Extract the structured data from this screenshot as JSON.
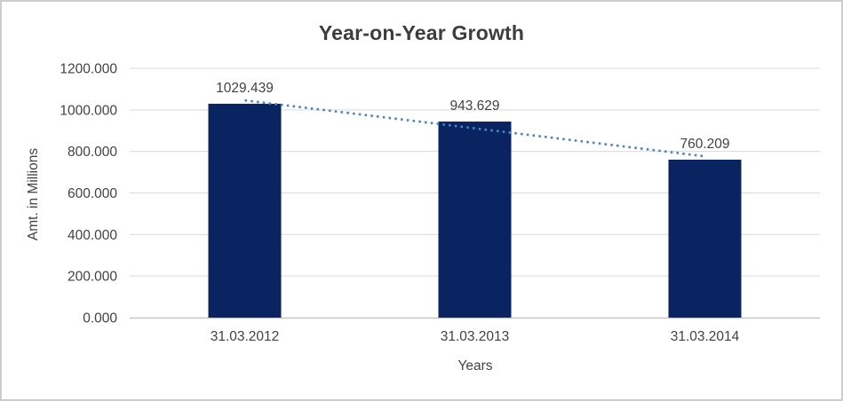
{
  "chart_data": {
    "type": "bar",
    "title": "Year-on-Year Growth",
    "xlabel": "Years",
    "ylabel": "Amt. in Millions",
    "categories": [
      "31.03.2012",
      "31.03.2013",
      "31.03.2014"
    ],
    "values": [
      1029.439,
      943.629,
      760.209
    ],
    "data_labels": [
      "1029.439",
      "943.629",
      "760.209"
    ],
    "ylim": [
      0,
      1200
    ],
    "ytick_labels": [
      "0.000",
      "200.000",
      "400.000",
      "600.000",
      "800.000",
      "1000.000",
      "1200.000"
    ],
    "grid": true,
    "legend": "none",
    "trendline": {
      "type": "linear",
      "style": "dotted"
    },
    "colors": {
      "bar": "#0a2462",
      "trendline": "#4e82c4",
      "gridline": "#d9d9d9",
      "axis_line": "#c6c6c6",
      "tick_text": "#424242",
      "title_text": "#3d3d3d",
      "border": "#cdcdcd",
      "background": "#ffffff"
    }
  }
}
